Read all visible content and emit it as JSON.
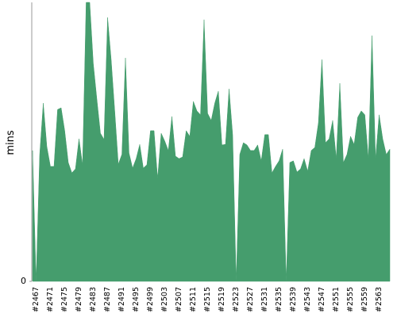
{
  "chart_data": {
    "type": "area",
    "y_label": "mins",
    "color": "#459d6d",
    "ylim": [
      0,
      100
    ],
    "yticks": [
      0
    ],
    "grid": false,
    "categories": [
      null,
      "#2467",
      null,
      null,
      null,
      "#2471",
      null,
      null,
      null,
      "#2475",
      null,
      null,
      null,
      "#2479",
      null,
      null,
      null,
      "#2483",
      null,
      null,
      null,
      "#2487",
      null,
      null,
      null,
      "#2491",
      null,
      null,
      null,
      "#2495",
      null,
      null,
      null,
      "#2499",
      null,
      null,
      null,
      "#2503",
      null,
      null,
      null,
      "#2507",
      null,
      null,
      null,
      "#2511",
      null,
      null,
      null,
      "#2515",
      null,
      null,
      null,
      "#2519",
      null,
      null,
      null,
      "#2523",
      null,
      null,
      null,
      "#2527",
      null,
      null,
      null,
      "#2531",
      null,
      null,
      null,
      "#2535",
      null,
      null,
      null,
      "#2539",
      null,
      null,
      null,
      "#2543",
      null,
      null,
      null,
      "#2547",
      null,
      null,
      null,
      "#2551",
      null,
      null,
      null,
      "#2555",
      null,
      null,
      null,
      "#2559",
      null,
      null,
      null,
      "#2563",
      null,
      null,
      null
    ],
    "values": [
      46.9,
      0,
      45.5,
      63.9,
      48.3,
      41.2,
      41.2,
      61.6,
      62.2,
      54,
      42.6,
      38.9,
      40.3,
      51.1,
      41.8,
      100,
      100,
      78.1,
      65.3,
      53.1,
      50.9,
      94.6,
      79.5,
      61.1,
      42,
      45.5,
      80.1,
      46,
      40.6,
      44,
      49.1,
      40.6,
      41.8,
      54,
      54,
      36.9,
      53.1,
      50.3,
      46.9,
      59.1,
      44.9,
      44,
      44.6,
      54,
      52,
      64.5,
      61.1,
      59.7,
      93.8,
      60.2,
      57.7,
      63.9,
      68.2,
      48.9,
      49.1,
      69,
      52.6,
      0,
      45.5,
      49.7,
      48.9,
      46.9,
      46.9,
      48.9,
      43.2,
      52.6,
      52.6,
      38.9,
      41.2,
      43.2,
      47.4,
      0,
      42.6,
      43.2,
      39.2,
      40.3,
      44,
      39.5,
      46.9,
      48,
      56.8,
      79.5,
      49.7,
      51.1,
      57.7,
      44,
      71,
      42.6,
      45.5,
      52,
      49.1,
      58.8,
      61.1,
      59.7,
      44,
      88.1,
      44,
      59.7,
      51.1,
      45.5,
      47.4
    ]
  }
}
